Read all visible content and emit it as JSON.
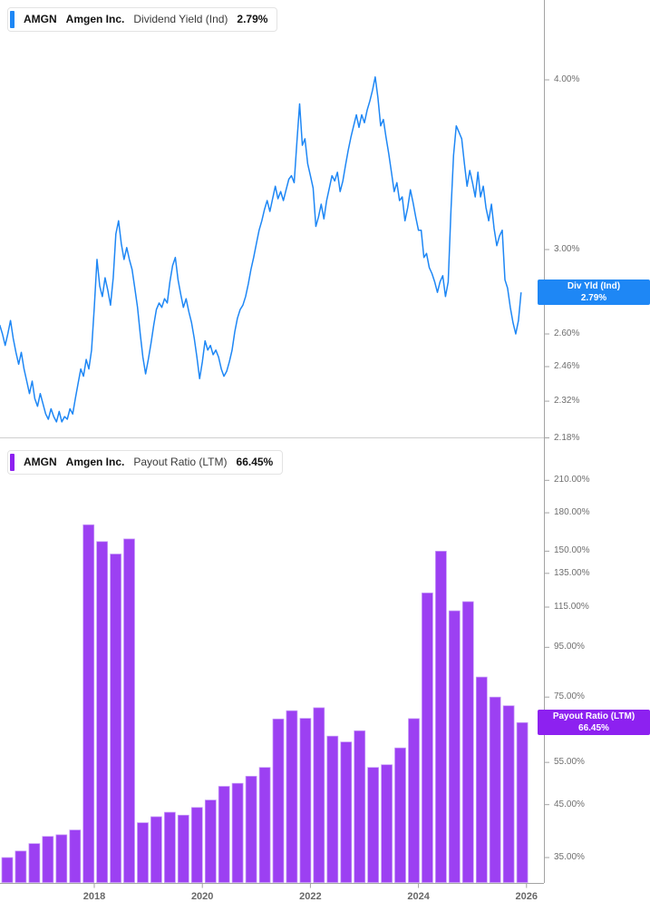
{
  "panels": [
    {
      "id": "dividend_yield",
      "color": "#1e87f5",
      "legend": {
        "ticker": "AMGN",
        "company": "Amgen Inc.",
        "metric": "Dividend Yield (Ind)",
        "value": "2.79%"
      },
      "badge": {
        "line1": "Div Yld (Ind)",
        "line2": "2.79%",
        "value": 2.79
      },
      "axis_ticks": [
        {
          "label": "4.00%",
          "value": 4.0
        },
        {
          "label": "3.00%",
          "value": 3.0
        },
        {
          "label": "2.60%",
          "value": 2.6
        },
        {
          "label": "2.46%",
          "value": 2.46
        },
        {
          "label": "2.32%",
          "value": 2.32
        },
        {
          "label": "2.18%",
          "value": 2.18
        }
      ]
    },
    {
      "id": "payout_ratio",
      "color": "#8d21f0",
      "bar_fill": "#9c40f2",
      "bar_edge": "#c79bf7",
      "legend": {
        "ticker": "AMGN",
        "company": "Amgen Inc.",
        "metric": "Payout Ratio (LTM)",
        "value": "66.45%"
      },
      "badge": {
        "line1": "Payout Ratio (LTM)",
        "line2": "66.45%",
        "value": 66.45
      },
      "axis_ticks": [
        {
          "label": "210.00%",
          "value": 210
        },
        {
          "label": "180.00%",
          "value": 180
        },
        {
          "label": "150.00%",
          "value": 150
        },
        {
          "label": "135.00%",
          "value": 135
        },
        {
          "label": "115.00%",
          "value": 115
        },
        {
          "label": "95.00%",
          "value": 95
        },
        {
          "label": "75.00%",
          "value": 75
        },
        {
          "label": "55.00%",
          "value": 55
        },
        {
          "label": "45.00%",
          "value": 45
        },
        {
          "label": "35.00%",
          "value": 35
        }
      ]
    }
  ],
  "x_axis": {
    "ticks": [
      {
        "label": "2018",
        "year": 2018
      },
      {
        "label": "2020",
        "year": 2020
      },
      {
        "label": "2022",
        "year": 2022
      },
      {
        "label": "2024",
        "year": 2024
      },
      {
        "label": "2026",
        "year": 2026
      }
    ]
  },
  "chart_data": [
    {
      "type": "line",
      "title": "AMGN Amgen Inc. Dividend Yield (Ind)",
      "unit": "%",
      "scale": "log",
      "ylim": [
        2.1,
        4.2
      ],
      "legend_position": "top-left",
      "grid": false,
      "last_value": 2.79,
      "x_unit": "decimal_year",
      "x_start": 2016.25,
      "x_step": 0.05,
      "values": [
        2.64,
        2.6,
        2.55,
        2.6,
        2.66,
        2.58,
        2.52,
        2.47,
        2.52,
        2.45,
        2.4,
        2.35,
        2.4,
        2.33,
        2.3,
        2.35,
        2.31,
        2.27,
        2.25,
        2.29,
        2.26,
        2.24,
        2.28,
        2.24,
        2.26,
        2.25,
        2.29,
        2.27,
        2.33,
        2.39,
        2.45,
        2.42,
        2.49,
        2.45,
        2.53,
        2.72,
        2.95,
        2.82,
        2.77,
        2.86,
        2.8,
        2.73,
        2.86,
        3.08,
        3.15,
        3.03,
        2.95,
        3.01,
        2.95,
        2.9,
        2.81,
        2.72,
        2.6,
        2.5,
        2.43,
        2.49,
        2.56,
        2.64,
        2.71,
        2.74,
        2.72,
        2.76,
        2.74,
        2.84,
        2.92,
        2.96,
        2.85,
        2.78,
        2.72,
        2.76,
        2.7,
        2.65,
        2.58,
        2.5,
        2.41,
        2.48,
        2.57,
        2.53,
        2.55,
        2.51,
        2.53,
        2.5,
        2.45,
        2.42,
        2.44,
        2.48,
        2.53,
        2.61,
        2.67,
        2.71,
        2.73,
        2.77,
        2.83,
        2.9,
        2.96,
        3.03,
        3.1,
        3.15,
        3.21,
        3.26,
        3.2,
        3.27,
        3.34,
        3.27,
        3.31,
        3.26,
        3.32,
        3.38,
        3.4,
        3.36,
        3.6,
        3.84,
        3.58,
        3.62,
        3.47,
        3.4,
        3.33,
        3.12,
        3.17,
        3.24,
        3.16,
        3.26,
        3.33,
        3.4,
        3.37,
        3.42,
        3.31,
        3.37,
        3.46,
        3.55,
        3.63,
        3.7,
        3.77,
        3.69,
        3.77,
        3.72,
        3.8,
        3.86,
        3.93,
        4.02,
        3.88,
        3.7,
        3.74,
        3.63,
        3.53,
        3.42,
        3.31,
        3.36,
        3.26,
        3.28,
        3.15,
        3.22,
        3.32,
        3.25,
        3.17,
        3.1,
        3.1,
        2.96,
        2.98,
        2.91,
        2.88,
        2.84,
        2.79,
        2.84,
        2.87,
        2.77,
        2.84,
        3.2,
        3.52,
        3.7,
        3.66,
        3.62,
        3.47,
        3.34,
        3.43,
        3.36,
        3.28,
        3.42,
        3.28,
        3.34,
        3.22,
        3.15,
        3.24,
        3.11,
        3.02,
        3.07,
        3.1,
        2.85,
        2.81,
        2.72,
        2.65,
        2.6,
        2.66,
        2.79
      ]
    },
    {
      "type": "bar",
      "title": "AMGN Amgen Inc. Payout Ratio (LTM)",
      "unit": "%",
      "scale": "log",
      "ylim": [
        32,
        220
      ],
      "legend_position": "top-left",
      "grid": false,
      "last_value": 66.45,
      "categories": [
        "Q2 2016",
        "Q3 2016",
        "Q4 2016",
        "Q1 2017",
        "Q2 2017",
        "Q3 2017",
        "Q4 2017",
        "Q1 2018",
        "Q2 2018",
        "Q3 2018",
        "Q4 2018",
        "Q1 2019",
        "Q2 2019",
        "Q3 2019",
        "Q4 2019",
        "Q1 2020",
        "Q2 2020",
        "Q3 2020",
        "Q4 2020",
        "Q1 2021",
        "Q2 2021",
        "Q3 2021",
        "Q4 2021",
        "Q1 2022",
        "Q2 2022",
        "Q3 2022",
        "Q4 2022",
        "Q1 2023",
        "Q2 2023",
        "Q3 2023",
        "Q4 2023",
        "Q1 2024",
        "Q2 2024",
        "Q3 2024",
        "Q4 2024",
        "Q1 2025",
        "Q2 2025",
        "Q3 2025",
        "Q4 2025"
      ],
      "values": [
        35.0,
        36.1,
        37.4,
        38.7,
        39.0,
        39.9,
        170.0,
        157.0,
        148.0,
        159.0,
        41.3,
        42.5,
        43.4,
        42.8,
        44.4,
        46.0,
        49.1,
        49.8,
        51.5,
        53.7,
        67.6,
        70.3,
        67.8,
        71.3,
        62.3,
        60.6,
        63.9,
        53.7,
        54.4,
        58.9,
        67.7,
        123.0,
        150.0,
        113.0,
        118.0,
        82.5,
        75.0,
        72.0,
        66.45
      ]
    }
  ]
}
